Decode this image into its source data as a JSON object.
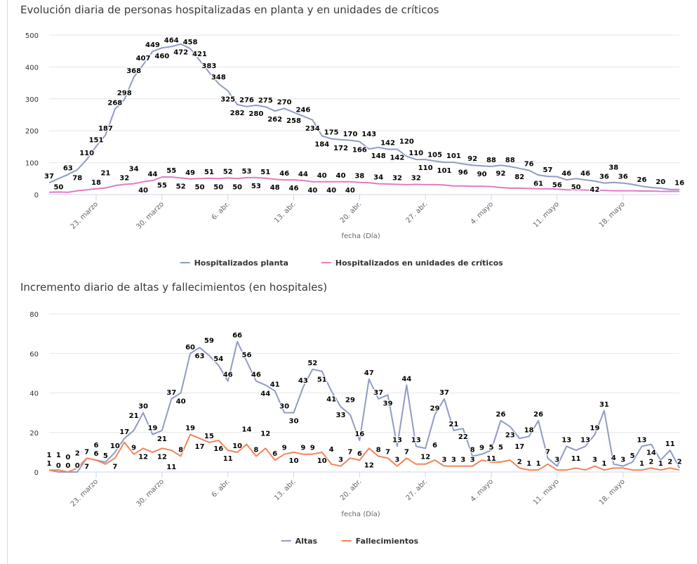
{
  "chart_data": [
    {
      "type": "line",
      "title": "Evolución diaria de personas hospitalizadas en planta y en unidades de críticos",
      "xlabel": "fecha (Día)",
      "ylabel": "",
      "ylim": [
        0,
        500
      ],
      "yticks": [
        0,
        100,
        200,
        300,
        400,
        500
      ],
      "grid": true,
      "legend": "bottom",
      "x": [
        "18/03",
        "19/03",
        "20/03",
        "21/03",
        "22/03",
        "23/03",
        "24/03",
        "25/03",
        "26/03",
        "27/03",
        "28/03",
        "29/03",
        "30/03",
        "31/03",
        "01/04",
        "02/04",
        "03/04",
        "04/04",
        "05/04",
        "06/04",
        "07/04",
        "08/04",
        "09/04",
        "10/04",
        "11/04",
        "12/04",
        "13/04",
        "14/04",
        "15/04",
        "16/04",
        "17/04",
        "18/04",
        "19/04",
        "20/04",
        "21/04",
        "22/04",
        "23/04",
        "24/04",
        "25/04",
        "26/04",
        "27/04",
        "28/04",
        "29/04",
        "30/04",
        "01/05",
        "02/05",
        "03/05",
        "04/05",
        "05/05",
        "06/05",
        "07/05",
        "08/05",
        "09/05",
        "10/05",
        "11/05",
        "12/05",
        "13/05",
        "14/05",
        "15/05",
        "16/05",
        "17/05",
        "18/05",
        "19/05",
        "20/05",
        "21/05",
        "22/05",
        "23/05",
        "24/05"
      ],
      "xticks": [
        {
          "label": "23. marzo",
          "x": "23/03"
        },
        {
          "label": "30. marzo",
          "x": "30/03"
        },
        {
          "label": "6. abr.",
          "x": "06/04"
        },
        {
          "label": "13. abr.",
          "x": "13/04"
        },
        {
          "label": "20. abr.",
          "x": "20/04"
        },
        {
          "label": "27. abr.",
          "x": "27/04"
        },
        {
          "label": "4. mayo",
          "x": "04/05"
        },
        {
          "label": "11. mayo",
          "x": "11/05"
        },
        {
          "label": "18. mayo",
          "x": "18/05"
        }
      ],
      "series": [
        {
          "name": "Hospitalizados planta",
          "color": "#8f9cc4",
          "values": [
            37,
            50,
            63,
            78,
            110,
            151,
            187,
            268,
            298,
            368,
            407,
            449,
            460,
            464,
            472,
            458,
            421,
            383,
            348,
            325,
            282,
            276,
            280,
            275,
            262,
            270,
            258,
            246,
            234,
            184,
            175,
            172,
            170,
            166,
            143,
            148,
            142,
            142,
            120,
            110,
            110,
            105,
            101,
            101,
            96,
            92,
            90,
            88,
            92,
            88,
            82,
            76,
            61,
            57,
            56,
            46,
            50,
            46,
            42,
            36,
            38,
            36,
            32,
            26,
            22,
            20,
            16,
            16
          ]
        },
        {
          "name": "Hospitalizados en unidades de críticos",
          "color": "#e07cc4",
          "values": [
            7,
            8,
            7,
            12,
            15,
            18,
            21,
            28,
            32,
            34,
            40,
            44,
            55,
            55,
            52,
            49,
            50,
            51,
            50,
            52,
            50,
            53,
            53,
            51,
            48,
            46,
            46,
            44,
            40,
            40,
            40,
            40,
            40,
            38,
            37,
            34,
            33,
            32,
            31,
            32,
            31,
            31,
            30,
            27,
            27,
            26,
            26,
            25,
            22,
            20,
            20,
            19,
            18,
            18,
            17,
            15,
            15,
            14,
            13,
            13,
            12,
            12,
            12,
            11,
            11,
            10,
            10,
            10
          ]
        }
      ]
    },
    {
      "type": "line",
      "title": "Incremento diario de altas y fallecimientos (en hospitales)",
      "xlabel": "fecha (Día)",
      "ylabel": "",
      "ylim": [
        0,
        80
      ],
      "yticks": [
        0,
        20,
        40,
        60,
        80
      ],
      "grid": true,
      "legend": "bottom",
      "x": [
        "18/03",
        "19/03",
        "20/03",
        "21/03",
        "22/03",
        "23/03",
        "24/03",
        "25/03",
        "26/03",
        "27/03",
        "28/03",
        "29/03",
        "30/03",
        "31/03",
        "01/04",
        "02/04",
        "03/04",
        "04/04",
        "05/04",
        "06/04",
        "07/04",
        "08/04",
        "09/04",
        "10/04",
        "11/04",
        "12/04",
        "13/04",
        "14/04",
        "15/04",
        "16/04",
        "17/04",
        "18/04",
        "19/04",
        "20/04",
        "21/04",
        "22/04",
        "23/04",
        "24/04",
        "25/04",
        "26/04",
        "27/04",
        "28/04",
        "29/04",
        "30/04",
        "01/05",
        "02/05",
        "03/05",
        "04/05",
        "05/05",
        "06/05",
        "07/05",
        "08/05",
        "09/05",
        "10/05",
        "11/05",
        "12/05",
        "13/05",
        "14/05",
        "15/05",
        "16/05",
        "17/05",
        "18/05",
        "19/05",
        "20/05",
        "21/05",
        "22/05",
        "23/05",
        "24/05"
      ],
      "xticks": [
        {
          "label": "23. marzo",
          "x": "23/03"
        },
        {
          "label": "30. marzo",
          "x": "30/03"
        },
        {
          "label": "6. abr.",
          "x": "06/04"
        },
        {
          "label": "13. abr.",
          "x": "13/04"
        },
        {
          "label": "20. abr.",
          "x": "20/04"
        },
        {
          "label": "27. abr.",
          "x": "27/04"
        },
        {
          "label": "4. mayo",
          "x": "04/05"
        },
        {
          "label": "11. mayo",
          "x": "11/05"
        },
        {
          "label": "18. mayo",
          "x": "18/05"
        }
      ],
      "series": [
        {
          "name": "Altas",
          "color": "#8f9cc4",
          "values": [
            1,
            0,
            0,
            0,
            7,
            6,
            5,
            10,
            17,
            21,
            30,
            19,
            21,
            37,
            40,
            60,
            63,
            59,
            54,
            46,
            66,
            56,
            46,
            44,
            41,
            30,
            30,
            43,
            52,
            51,
            41,
            33,
            29,
            16,
            47,
            37,
            39,
            13,
            44,
            13,
            12,
            29,
            37,
            21,
            22,
            8,
            9,
            11,
            26,
            23,
            17,
            18,
            26,
            7,
            3,
            13,
            11,
            13,
            19,
            31,
            4,
            3,
            5,
            13,
            14,
            6,
            11,
            2
          ]
        },
        {
          "name": "Fallecimientos",
          "color": "#f2845a",
          "values": [
            1,
            1,
            0,
            2,
            7,
            6,
            4,
            7,
            15,
            9,
            12,
            10,
            12,
            11,
            8,
            19,
            17,
            15,
            16,
            11,
            10,
            14,
            8,
            12,
            6,
            9,
            10,
            9,
            9,
            10,
            4,
            3,
            7,
            6,
            12,
            8,
            7,
            3,
            7,
            4,
            4,
            6,
            3,
            3,
            3,
            3,
            6,
            5,
            5,
            6,
            2,
            1,
            1,
            4,
            1,
            1,
            2,
            1,
            3,
            1,
            2,
            2,
            1,
            1,
            2,
            1,
            2,
            1
          ]
        }
      ]
    }
  ]
}
